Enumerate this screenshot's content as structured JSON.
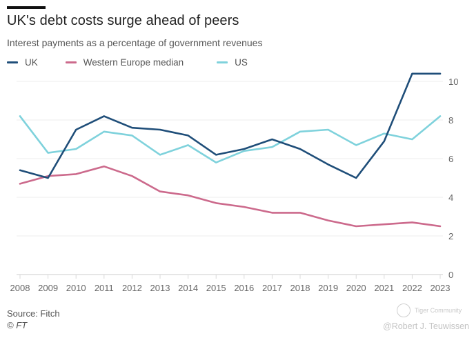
{
  "header": {
    "title": "UK's debt costs surge ahead of peers",
    "subtitle": "Interest payments as a percentage of government revenues"
  },
  "footer": {
    "source": "Source: Fitch",
    "copyright": "© FT"
  },
  "watermark": {
    "brand": "Tiger Community",
    "author": "@Robert J. Teuwissen"
  },
  "chart_data": {
    "type": "line",
    "title": "UK's debt costs surge ahead of peers",
    "subtitle": "Interest payments as a percentage of government revenues",
    "xlabel": "",
    "ylabel": "",
    "x": [
      2008,
      2009,
      2010,
      2011,
      2012,
      2013,
      2014,
      2015,
      2016,
      2017,
      2018,
      2019,
      2020,
      2021,
      2022,
      2023
    ],
    "x_tick_labels": [
      "2008",
      "2009",
      "2010",
      "2011",
      "2012",
      "2013",
      "2014",
      "2015",
      "2016",
      "2017",
      "2018",
      "2019",
      "2020",
      "2021",
      "2022",
      "2023"
    ],
    "ylim": [
      0,
      10.5
    ],
    "y_ticks": [
      0,
      2,
      4,
      6,
      8,
      10
    ],
    "y_tick_labels": [
      "0",
      "2",
      "4",
      "6",
      "8",
      "10"
    ],
    "y_axis_side": "right",
    "grid": true,
    "legend_position": "top-left",
    "series": [
      {
        "name": "UK",
        "color": "#1f4e79",
        "values": [
          5.4,
          5.0,
          7.5,
          8.2,
          7.6,
          7.5,
          7.2,
          6.2,
          6.5,
          7.0,
          6.5,
          5.7,
          5.0,
          6.9,
          10.4,
          10.4
        ]
      },
      {
        "name": "Western Europe median",
        "color": "#cc6a8c",
        "values": [
          4.7,
          5.1,
          5.2,
          5.6,
          5.1,
          4.3,
          4.1,
          3.7,
          3.5,
          3.2,
          3.2,
          2.8,
          2.5,
          2.6,
          2.7,
          2.5
        ]
      },
      {
        "name": "US",
        "color": "#7fd2dc",
        "values": [
          8.2,
          6.3,
          6.5,
          7.4,
          7.2,
          6.2,
          6.7,
          5.8,
          6.4,
          6.6,
          7.4,
          7.5,
          6.7,
          7.3,
          7.0,
          8.2
        ]
      }
    ]
  }
}
